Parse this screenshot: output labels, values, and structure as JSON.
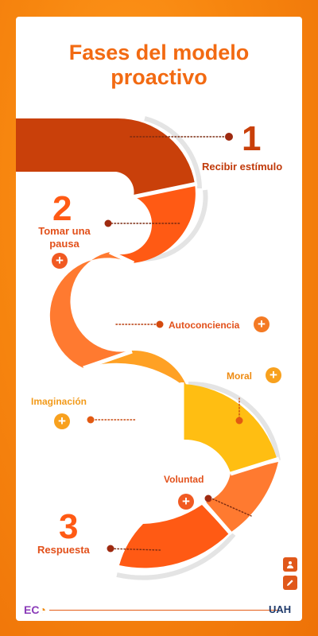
{
  "title": {
    "line1": "Fases del modelo",
    "line2": "proactivo"
  },
  "phases": [
    {
      "number": "1",
      "label": "Recibir estímulo"
    },
    {
      "number": "2",
      "label_line1": "Tomar una",
      "label_line2": "pausa"
    },
    {
      "number": "3",
      "label": "Respuesta"
    }
  ],
  "sub_steps": {
    "autoconciencia": "Autoconciencia",
    "imaginacion": "Imaginación",
    "moral": "Moral",
    "voluntad": "Voluntad"
  },
  "icons": {
    "plus": "+",
    "user": "user-icon",
    "edit": "pencil-icon"
  },
  "footer": {
    "left_logo": "EC",
    "right_logo": "UAH"
  },
  "colors": {
    "title": "#f26a12",
    "dark_red": "#c9400a",
    "dot": "#9e2a10",
    "red_orange": "#ff5a14",
    "orange": "#ff7a30",
    "light_orange": "#ffa124",
    "yellow": "#ffbe12",
    "plus_orange": "#f47a24",
    "plus_light": "#f8a11e"
  }
}
